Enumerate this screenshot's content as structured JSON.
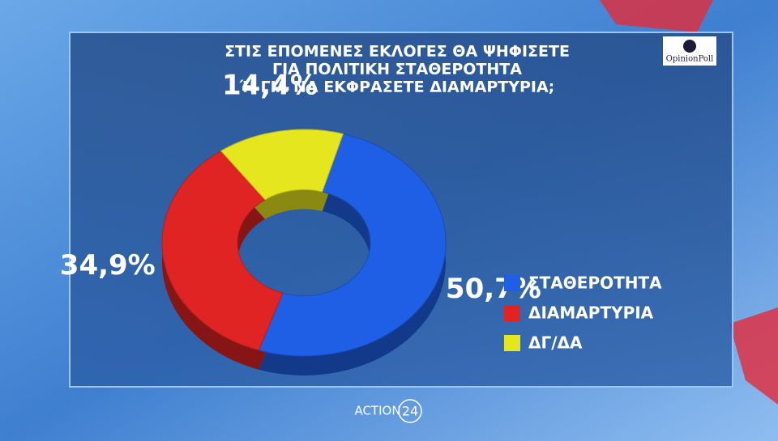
{
  "chart_data": {
    "type": "pie",
    "title_lines": [
      "ΣΤΙΣ ΕΠΟΜΕΝΕΣ ΕΚΛΟΓΕΣ ΘΑ ΨΗΦΙΣΕΤΕ",
      "ΓΙΑ ΠΟΛΙΤΙΚΗ ΣΤΑΘΕΡΟΤΗΤΑ",
      "Ή ΓΙΑ ΝΑ ΕΚΦΡΑΣΕΤΕ ΔΙΑΜΑΡΤΥΡΙΑ;"
    ],
    "categories": [
      "ΣΤΑΘΕΡΟΤΗΤΑ",
      "ΔΙΑΜΑΡΤΥΡΙΑ",
      "ΔΓ/ΔΑ"
    ],
    "values": [
      50.7,
      34.9,
      14.4
    ],
    "value_labels": [
      "50,7%",
      "34,9%",
      "14,4%"
    ],
    "colors": [
      "#1f5fe6",
      "#e02424",
      "#e6e61e"
    ],
    "donut": true
  },
  "logos": {
    "pollster": "OpinionPoll",
    "channel": "ACTION",
    "channel_number": "24"
  }
}
